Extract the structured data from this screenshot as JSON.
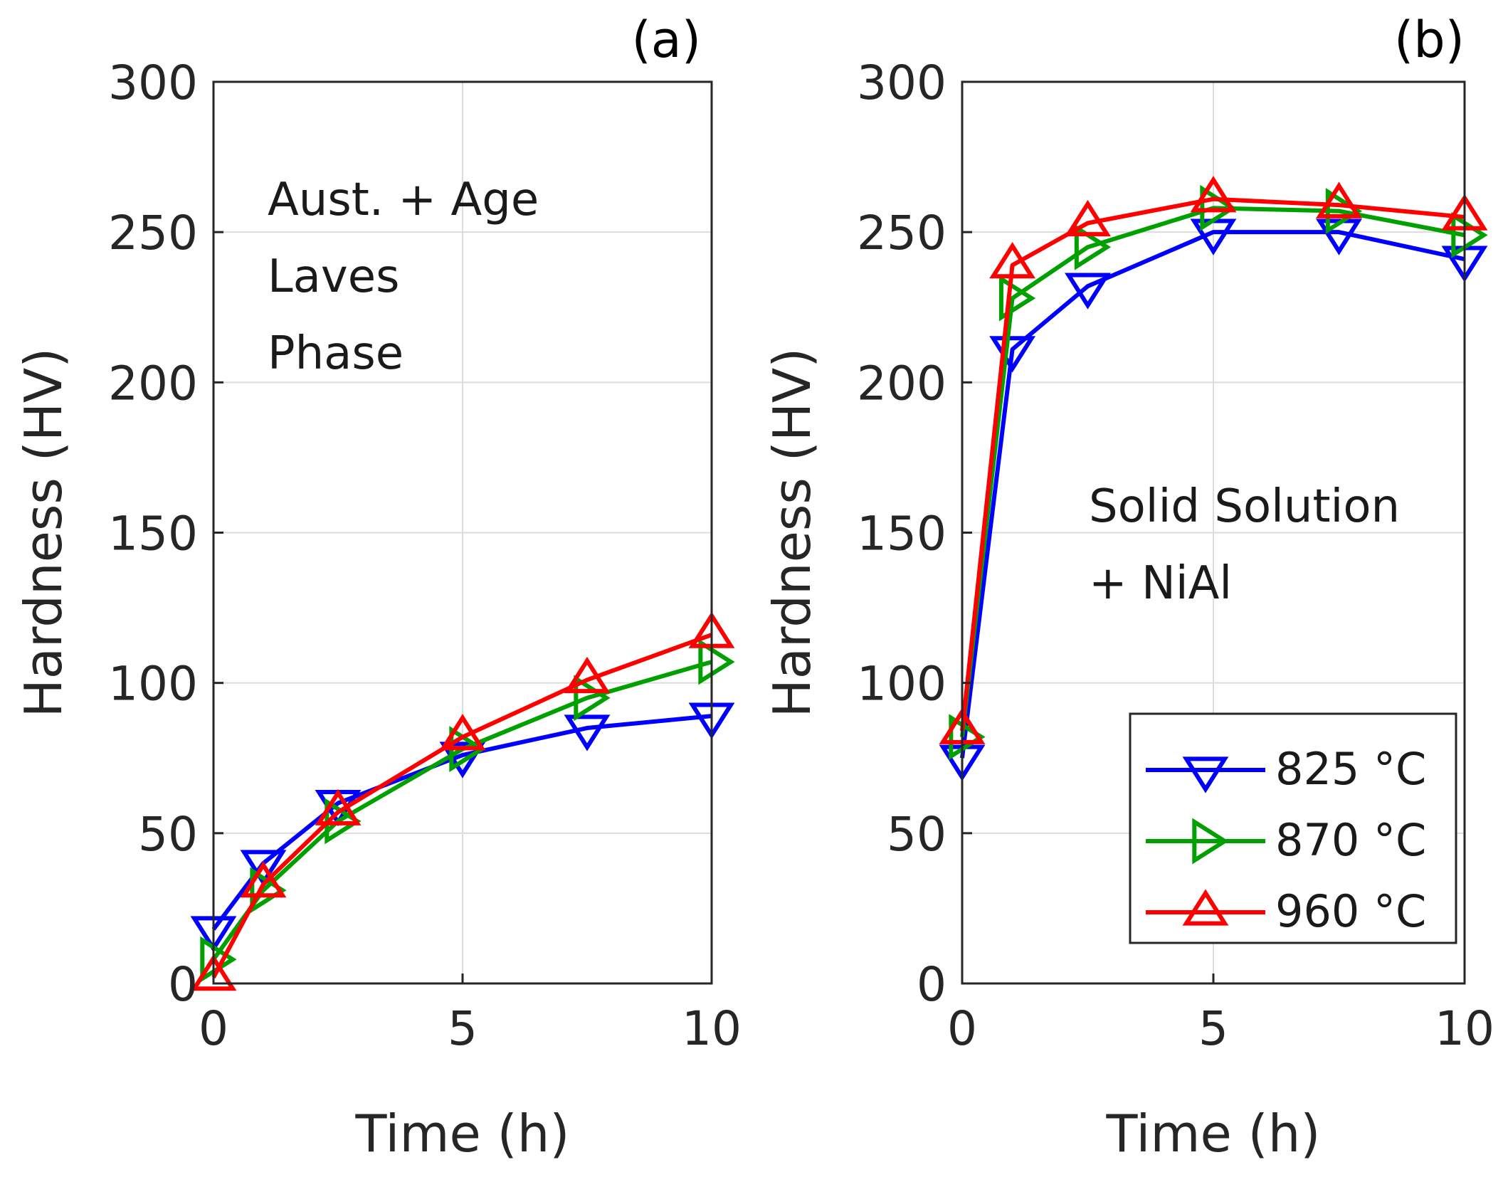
{
  "chart_data": [
    {
      "type": "line",
      "panel_label": "(a)",
      "title": "",
      "xlabel": "Time (h)",
      "ylabel": "Hardness (HV)",
      "xlim": [
        0,
        10
      ],
      "ylim": [
        0,
        300
      ],
      "xticks": [
        0,
        5,
        10
      ],
      "xtick_labels": [
        "0",
        "5",
        "10"
      ],
      "yticks": [
        0,
        50,
        100,
        150,
        200,
        250,
        300
      ],
      "ytick_labels": [
        "0",
        "50",
        "100",
        "150",
        "200",
        "250",
        "300"
      ],
      "grid": true,
      "annotation": [
        "Aust. + Age",
        "Laves",
        "Phase"
      ],
      "annotation_position": "top-left",
      "series": [
        {
          "name": "825 °C",
          "color": "#0000ff",
          "marker": "triangle-down",
          "x": [
            0,
            1,
            2.5,
            5,
            7.5,
            10
          ],
          "y": [
            18,
            40,
            60,
            76,
            85,
            89
          ]
        },
        {
          "name": "870 °C",
          "color": "#00a000",
          "marker": "triangle-right",
          "x": [
            0,
            1,
            2.5,
            5,
            7.5,
            10
          ],
          "y": [
            8,
            31,
            54,
            78,
            95,
            107
          ]
        },
        {
          "name": "960 °C",
          "color": "#ff0000",
          "marker": "triangle-up",
          "x": [
            0,
            1,
            2.5,
            5,
            7.5,
            10
          ],
          "y": [
            2,
            33,
            57,
            82,
            101,
            116
          ]
        }
      ]
    },
    {
      "type": "line",
      "panel_label": "(b)",
      "title": "",
      "xlabel": "Time (h)",
      "ylabel": "Hardness (HV)",
      "xlim": [
        0,
        10
      ],
      "ylim": [
        0,
        300
      ],
      "xticks": [
        0,
        5,
        10
      ],
      "xtick_labels": [
        "0",
        "5",
        "10"
      ],
      "yticks": [
        0,
        50,
        100,
        150,
        200,
        250,
        300
      ],
      "ytick_labels": [
        "0",
        "50",
        "100",
        "150",
        "200",
        "250",
        "300"
      ],
      "grid": true,
      "annotation": [
        "Solid Solution",
        "+ NiAl"
      ],
      "annotation_position": "middle-right",
      "legend_position": "bottom-right",
      "legend": [
        "825 °C",
        "870 °C",
        "960 °C"
      ],
      "series": [
        {
          "name": "825 °C",
          "color": "#0000ff",
          "marker": "triangle-down",
          "x": [
            0,
            1,
            2.5,
            5,
            7.5,
            10
          ],
          "y": [
            75,
            211,
            232,
            250,
            250,
            241
          ]
        },
        {
          "name": "870 °C",
          "color": "#00a000",
          "marker": "triangle-right",
          "x": [
            0,
            1,
            2.5,
            5,
            7.5,
            10
          ],
          "y": [
            82,
            228,
            245,
            258,
            257,
            249
          ]
        },
        {
          "name": "960 °C",
          "color": "#ff0000",
          "marker": "triangle-up",
          "x": [
            0,
            1,
            2.5,
            5,
            7.5,
            10
          ],
          "y": [
            84,
            239,
            253,
            261,
            259,
            255
          ]
        }
      ]
    }
  ]
}
